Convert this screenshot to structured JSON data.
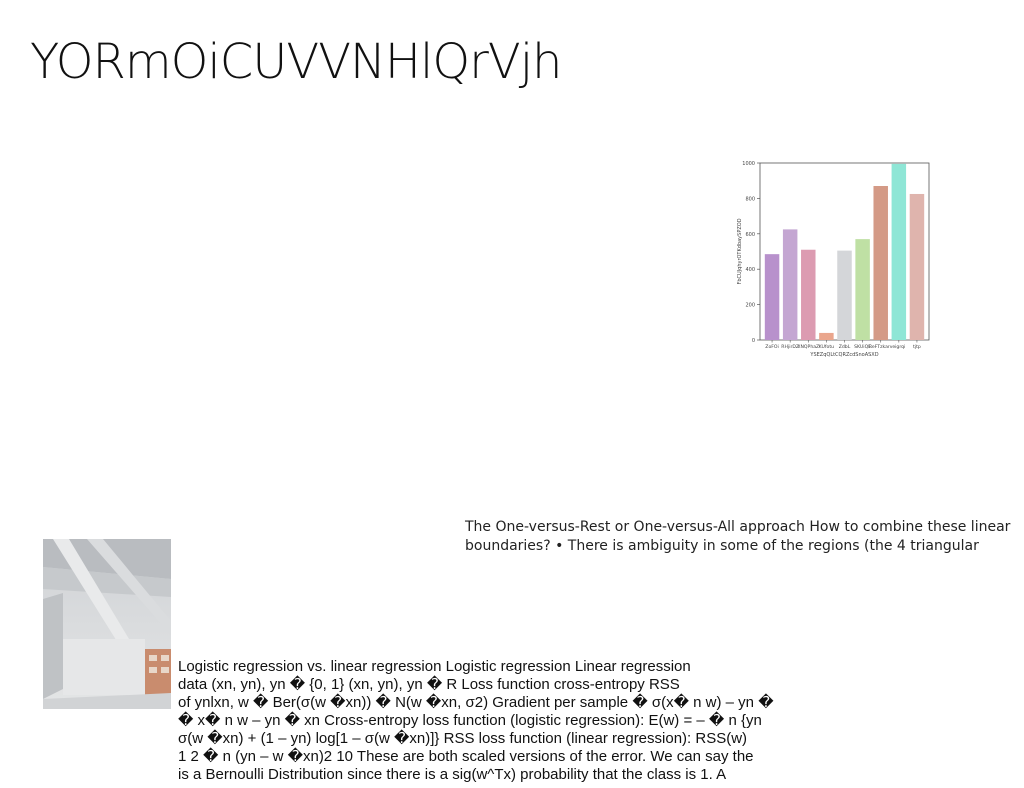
{
  "title": "YORmOiCUVVNHlQrVjh",
  "chart_data": {
    "type": "bar",
    "categories": [
      "ZoFOi",
      "RHjirDZ",
      "XNQPhaZ",
      "KUfotu",
      "ZdbL",
      "SKUiQE",
      "ReFTzkarv",
      "eigrqi",
      "tjtp"
    ],
    "values": [
      485,
      625,
      510,
      40,
      505,
      570,
      870,
      995,
      825
    ],
    "colors": [
      "#b891cc",
      "#c4a6d2",
      "#dc9bb1",
      "#eaa68d",
      "#d4d6d9",
      "#bfe0a4",
      "#d49a86",
      "#8fe6d6",
      "#dfb4ad"
    ],
    "yticks": [
      0,
      200,
      400,
      600,
      800,
      1000
    ],
    "ylim": [
      0,
      1000
    ],
    "ylabel": "FbCUJqhyrOTKdbaySPZOD",
    "xlabel": "YSEZqQLtCQRZcdSnoASXD"
  },
  "paragraph_right": {
    "lines": [
      "The One-versus-Rest or One-versus-All approach How to combine these linear",
      "boundaries? • There is ambiguity in some of the regions (the 4 triangular"
    ]
  },
  "image": {
    "subject": "concrete-ceiling-photo"
  },
  "paragraph_bottom": {
    "lines": [
      "Logistic regression vs. linear regression Logistic regression Linear regression",
      "data (xn, yn), yn � {0, 1} (xn, yn), yn � R Loss function cross-entropy RSS",
      "of ynlxn, w � Ber(σ(w �xn)) � N(w �xn, σ2) Gradient per sample � σ(x� n w) – yn �",
      "� x� n w – yn � xn Cross-entropy loss function (logistic regression): E(w) = – � n {yn",
      "σ(w �xn) + (1 – yn) log[1 – σ(w �xn)]} RSS loss function (linear regression): RSS(w)",
      "1 2 � n (yn – w �xn)2 10 These are both scaled versions of the error. We can say the",
      "is a Bernoulli Distribution since there is a sig(w^Tx) probability that the class is 1. A"
    ]
  }
}
